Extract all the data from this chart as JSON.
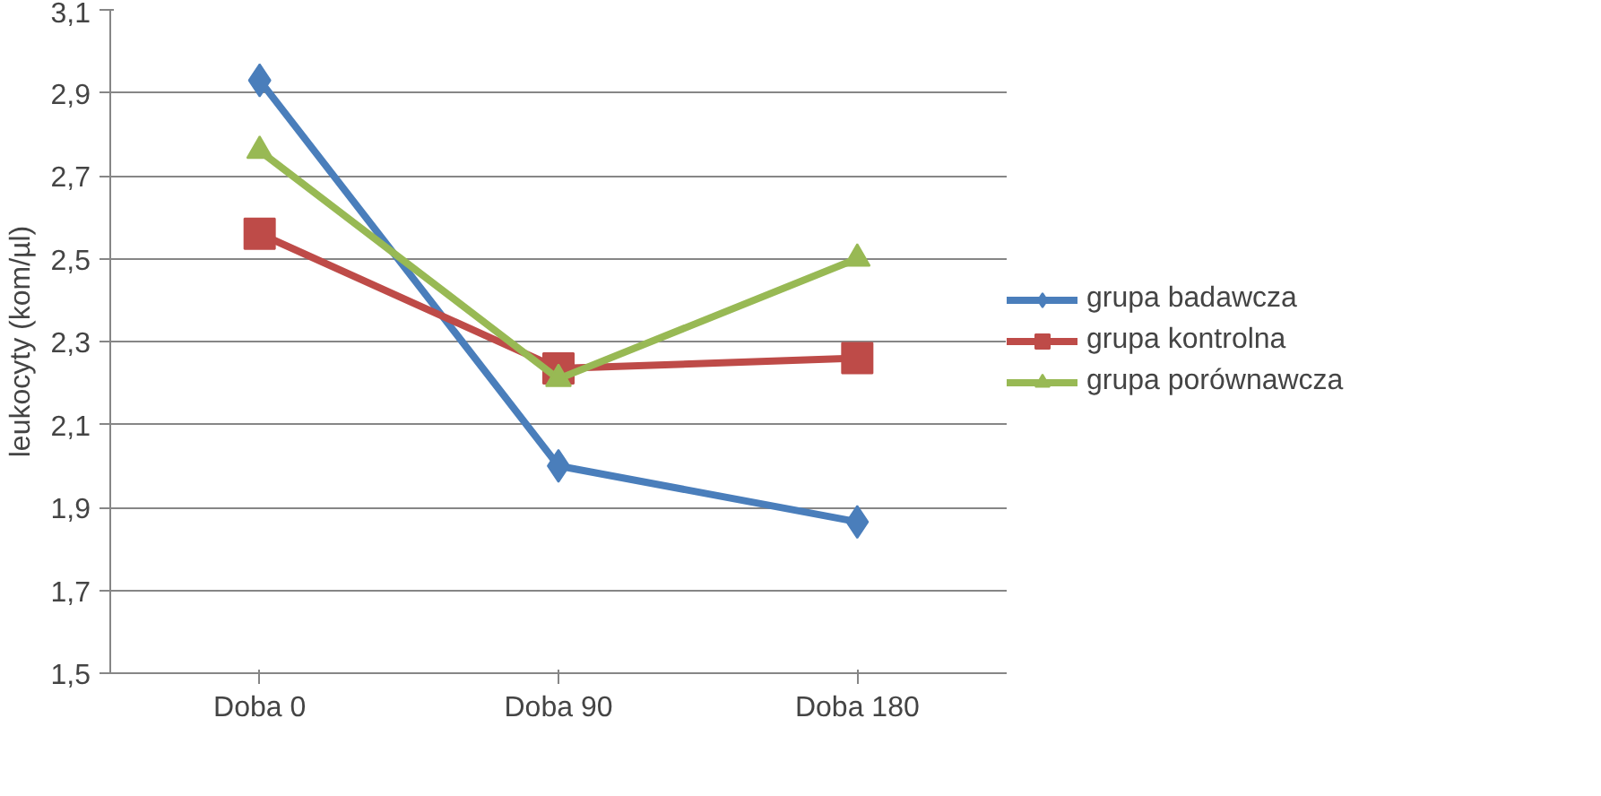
{
  "chart_data": {
    "type": "line",
    "ylabel": "leukocyty (kom/µl)",
    "categories": [
      "Doba 0",
      "Doba 90",
      "Doba 180"
    ],
    "series": [
      {
        "name": "grupa badawcza",
        "color": "#4a7ebb",
        "marker": "diamond",
        "values": [
          2.93,
          2.0,
          1.865
        ]
      },
      {
        "name": "grupa kontrolna",
        "color": "#be4b48",
        "marker": "square",
        "values": [
          2.56,
          2.235,
          2.26
        ]
      },
      {
        "name": "grupa porównawcza",
        "color": "#98b954",
        "marker": "triangle",
        "values": [
          2.76,
          2.21,
          2.5
        ]
      }
    ],
    "ylim": [
      1.5,
      3.1
    ],
    "yticks": [
      {
        "value": 1.5,
        "label": "1,5"
      },
      {
        "value": 1.7,
        "label": "1,7"
      },
      {
        "value": 1.9,
        "label": "1,9"
      },
      {
        "value": 2.1,
        "label": "2,1"
      },
      {
        "value": 2.3,
        "label": "2,3"
      },
      {
        "value": 2.5,
        "label": "2,5"
      },
      {
        "value": 2.7,
        "label": "2,7"
      },
      {
        "value": 2.9,
        "label": "2,9"
      },
      {
        "value": 3.1,
        "label": "3,1"
      }
    ],
    "grid": "y",
    "legend": "right",
    "line_style": "solid"
  }
}
